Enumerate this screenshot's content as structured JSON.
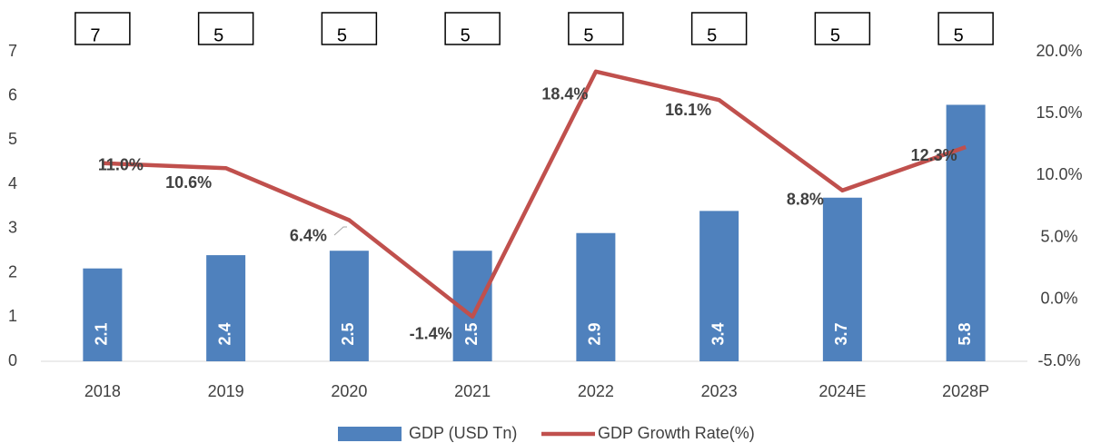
{
  "chart_data": {
    "type": "bar_line",
    "categories": [
      "2018",
      "2019",
      "2020",
      "2021",
      "2022",
      "2023",
      "2024E",
      "2028P"
    ],
    "annotations": [
      7,
      5,
      5,
      5,
      5,
      5,
      5,
      5
    ],
    "series": [
      {
        "name": "GDP (USD Tn)",
        "type": "bar",
        "color": "#4f81bd",
        "values": [
          2.1,
          2.4,
          2.5,
          2.5,
          2.9,
          3.4,
          3.7,
          5.8
        ]
      },
      {
        "name": "GDP Growth Rate(%)",
        "type": "line",
        "axis": "y2",
        "color": "#c0504d",
        "values": [
          11.0,
          10.6,
          6.4,
          -1.4,
          18.4,
          16.1,
          8.8,
          12.3
        ],
        "value_labels": [
          "11.0%",
          "10.6%",
          "6.4%",
          "-1.4%",
          "18.4%",
          "16.1%",
          "8.8%",
          "12.3%"
        ]
      }
    ],
    "ylim": [
      0,
      7
    ],
    "yticks": [
      0,
      1,
      2,
      3,
      4,
      5,
      6,
      7
    ],
    "y2lim": [
      -5,
      20
    ],
    "y2ticks": [
      {
        "value": -5,
        "label": "-5.0%"
      },
      {
        "value": 0,
        "label": "0.0%"
      },
      {
        "value": 5,
        "label": "5.0%"
      },
      {
        "value": 10,
        "label": "10.0%"
      },
      {
        "value": 15,
        "label": "15.0%"
      },
      {
        "value": 20,
        "label": "20.0%"
      }
    ],
    "grid": false,
    "legend": "bottom"
  }
}
